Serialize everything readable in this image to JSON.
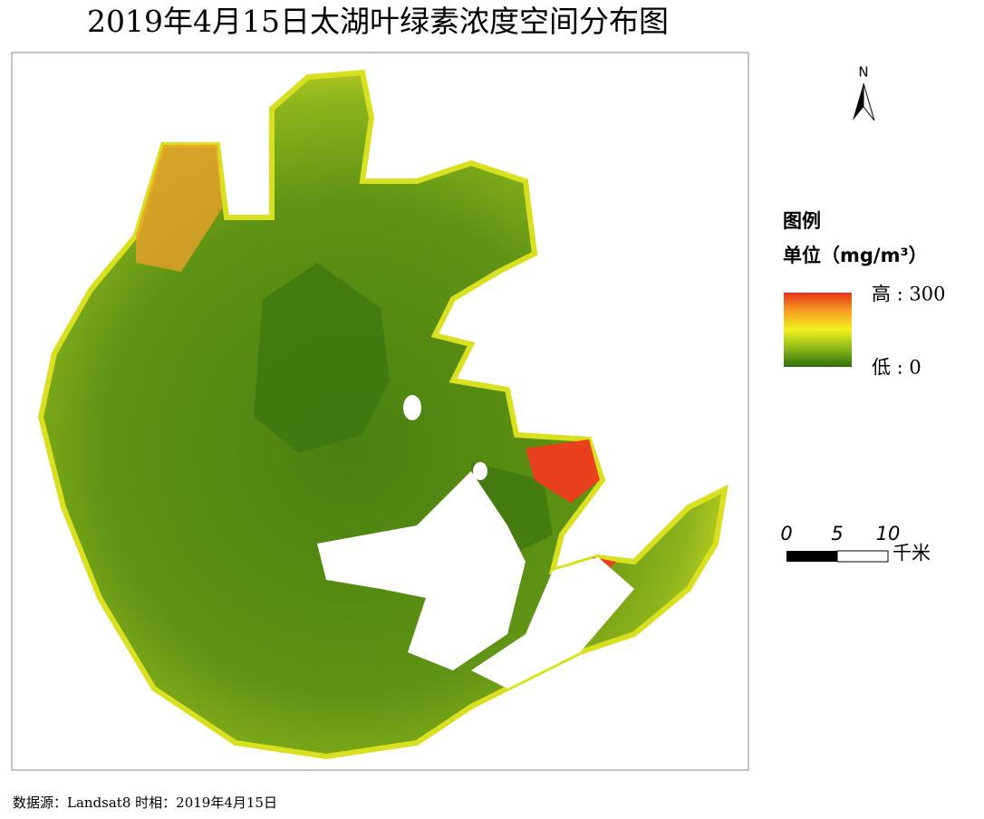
{
  "title": "2019年4月15日太湖叶绿素浓度空间分布图",
  "north": "N",
  "legend": {
    "title": "图例",
    "unit": "单位（mg/m³）",
    "high": "高 : 300",
    "low": "低 : 0"
  },
  "scale_bar": {
    "ticks": [
      0,
      5,
      10
    ],
    "unit": "千米"
  },
  "source": "数据源：Landsat8 时相：2019年4月15日"
}
